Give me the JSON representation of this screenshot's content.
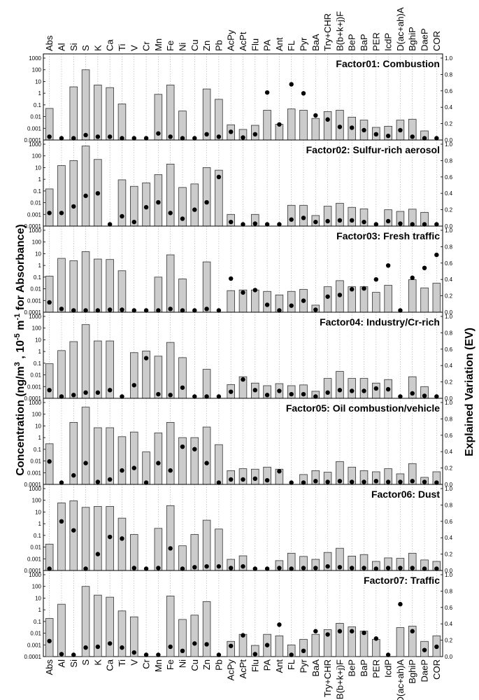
{
  "colors": {
    "bar_fill": "#cccccc",
    "bar_stroke": "#333333",
    "dot": "#000000",
    "grid": "#aaaaaa"
  },
  "ylabel_left": "Concentration (ng/m3 , 10-5 m-1 for Absorbance)",
  "ylabel_right": "Explained Variation (EV)",
  "chart_data": {
    "type": "bar",
    "scale_left": "log",
    "scale_right": "linear",
    "categories": [
      "Abs",
      "Al",
      "Si",
      "S",
      "K",
      "Ca",
      "Ti",
      "V",
      "Cr",
      "Mn",
      "Fe",
      "Ni",
      "Cu",
      "Zn",
      "Pb",
      "AcPy",
      "AcPt",
      "Flu",
      "PA",
      "Ant",
      "FL",
      "Pyr",
      "BaA",
      "Try+CHR",
      "B(b+k+j)F",
      "BeP",
      "BaP",
      "PER",
      "IcdP",
      "D(ac+ah)A",
      "BghiP",
      "DaeP",
      "COR"
    ],
    "y_ticks_left": [
      "1000",
      "100",
      "10",
      "1",
      "0.1",
      "0.01",
      "0.001",
      "0.0001"
    ],
    "y_ticks_right": [
      "1.0",
      "0.8",
      "0.6",
      "0.4",
      "0.2",
      "0.0"
    ],
    "ylim_left": [
      0.0001,
      1000
    ],
    "ylim_right": [
      0,
      1
    ],
    "factors": [
      {
        "title": "Factor01: Combustion",
        "bars": [
          0.05,
          null,
          3.5,
          100,
          5,
          3,
          0.12,
          null,
          null,
          0.8,
          5,
          0.03,
          null,
          2.3,
          0.3,
          0.002,
          0.0008,
          0.0018,
          0.035,
          0.0022,
          0.045,
          0.035,
          0.007,
          0.027,
          0.035,
          0.009,
          0.005,
          0.0012,
          0.0015,
          0.005,
          0.006,
          0.0006,
          null
        ],
        "ev": [
          0.04,
          0.0,
          0.02,
          0.06,
          0.04,
          0.04,
          0.02,
          0.0,
          0.0,
          0.08,
          0.04,
          0.02,
          0.0,
          0.07,
          0.04,
          0.1,
          0.03,
          0.07,
          0.58,
          0.19,
          0.68,
          0.57,
          0.3,
          0.25,
          0.16,
          0.15,
          0.12,
          0.07,
          0.05,
          0.12,
          0.04,
          0.02,
          0.0
        ]
      },
      {
        "title": "Factor02: Sulfur-rich aerosol",
        "bars": [
          0.15,
          15,
          40,
          700,
          50,
          null,
          0.9,
          0.25,
          0.5,
          2.5,
          20,
          0.2,
          0.4,
          10,
          6,
          0.001,
          null,
          0.001,
          null,
          null,
          0.006,
          0.006,
          0.0008,
          0.005,
          0.009,
          0.004,
          0.003,
          null,
          0.0025,
          0.0018,
          0.0028,
          0.0015,
          null
        ],
        "ev": [
          0.16,
          0.16,
          0.24,
          0.37,
          0.4,
          0.0,
          0.12,
          0.05,
          0.23,
          0.29,
          0.16,
          0.09,
          0.2,
          0.29,
          0.6,
          0.05,
          0.0,
          0.03,
          0.0,
          0.0,
          0.08,
          0.1,
          0.05,
          0.06,
          0.07,
          0.07,
          0.05,
          0.01,
          0.06,
          0.03,
          0.0,
          0.0,
          0.0
        ]
      },
      {
        "title": "Factor03: Fresh traffic",
        "bars": [
          0.12,
          4,
          2.5,
          15,
          3.5,
          3.2,
          0.35,
          null,
          null,
          0.1,
          8,
          0.07,
          null,
          2,
          null,
          0.007,
          0.008,
          0.008,
          0.006,
          0.003,
          0.006,
          0.009,
          0.0004,
          0.015,
          0.05,
          0.015,
          0.015,
          0.005,
          0.02,
          null,
          0.06,
          0.012,
          0.03
        ],
        "ev": [
          0.12,
          0.04,
          0.02,
          0.02,
          0.02,
          0.03,
          0.03,
          0.0,
          0.0,
          0.02,
          0.04,
          0.02,
          0.0,
          0.04,
          0.0,
          0.41,
          0.24,
          0.27,
          0.09,
          0.0,
          0.08,
          0.14,
          0.03,
          0.19,
          0.21,
          0.28,
          0.29,
          0.4,
          0.57,
          0.0,
          0.42,
          0.54,
          0.7
        ]
      },
      {
        "title": "Factor04: Industry/Cr-rich",
        "bars": [
          0.09,
          1.2,
          7,
          200,
          8,
          8,
          null,
          0.8,
          1.1,
          0.4,
          6,
          0.3,
          null,
          0.03,
          null,
          0.0015,
          0.007,
          0.002,
          0.0012,
          0.0018,
          0.0012,
          0.0014,
          0.0004,
          0.005,
          0.02,
          0.005,
          0.005,
          0.002,
          0.004,
          null,
          0.007,
          0.001,
          null
        ],
        "ev": [
          0.1,
          0.02,
          0.04,
          0.07,
          0.07,
          0.1,
          0.0,
          0.16,
          0.49,
          0.05,
          0.04,
          0.13,
          0.0,
          0.0,
          0.0,
          0.08,
          0.23,
          0.1,
          0.04,
          0.09,
          0.05,
          0.05,
          0.01,
          0.07,
          0.1,
          0.09,
          0.09,
          0.12,
          0.11,
          0.0,
          0.06,
          0.03,
          0.0
        ]
      },
      {
        "title": "Factor05: Oil combustion/vehicle",
        "bars": [
          0.3,
          null,
          20,
          400,
          7,
          7,
          1.2,
          3,
          0.06,
          2.5,
          20,
          1,
          1,
          8,
          0.25,
          0.0015,
          0.0022,
          0.002,
          0.003,
          0.002,
          null,
          0.0007,
          0.0015,
          0.0011,
          0.009,
          0.003,
          0.0015,
          0.0012,
          0.0022,
          0.0008,
          0.006,
          0.0004,
          0.0012
        ],
        "ev": [
          0.28,
          0.0,
          0.11,
          0.26,
          0.03,
          0.06,
          0.17,
          0.2,
          0.01,
          0.26,
          0.17,
          0.46,
          0.43,
          0.26,
          0.02,
          0.06,
          0.06,
          0.07,
          0.05,
          0.16,
          0.0,
          0.02,
          0.04,
          0.03,
          0.04,
          0.03,
          0.03,
          0.04,
          0.03,
          0.03,
          0.04,
          0.03,
          0.02
        ]
      },
      {
        "title": "Factor06: Dust",
        "bars": [
          0.018,
          60,
          90,
          25,
          30,
          30,
          3,
          0.12,
          null,
          0.4,
          35,
          0.013,
          0.12,
          2,
          0.35,
          0.0009,
          0.0018,
          null,
          null,
          0.0007,
          0.003,
          0.0016,
          0.0009,
          0.0035,
          0.008,
          0.0017,
          0.0023,
          0.0006,
          0.0012,
          0.0011,
          0.003,
          0.0008,
          0.0006
        ],
        "ev": [
          0.02,
          0.6,
          0.49,
          0.01,
          0.2,
          0.41,
          0.39,
          0.03,
          0.0,
          0.03,
          0.27,
          0.01,
          0.04,
          0.05,
          0.05,
          0.03,
          0.05,
          0.0,
          0.0,
          0.03,
          0.0,
          0.03,
          0.03,
          0.05,
          0.04,
          0.03,
          0.03,
          0.02,
          0.03,
          0.03,
          0.03,
          0.02,
          0.02
        ]
      },
      {
        "title": "Factor07: Traffic",
        "bars": [
          0.18,
          3,
          null,
          100,
          18,
          12,
          0.8,
          0.25,
          null,
          null,
          15,
          0.15,
          0.35,
          5,
          null,
          0.002,
          0.008,
          0.0009,
          0.008,
          0.006,
          0.001,
          0.003,
          0.008,
          0.02,
          0.07,
          0.035,
          0.015,
          0.003,
          null,
          0.03,
          0.04,
          0.002,
          0.006
        ],
        "ev": [
          0.19,
          0.03,
          0.0,
          0.11,
          0.12,
          0.16,
          0.11,
          0.05,
          0.0,
          0.0,
          0.12,
          0.07,
          0.16,
          0.15,
          0.0,
          0.13,
          0.26,
          0.03,
          0.14,
          0.39,
          0.02,
          0.07,
          0.31,
          0.27,
          0.31,
          0.31,
          0.29,
          0.22,
          0.0,
          0.64,
          0.31,
          0.08,
          0.12
        ]
      }
    ]
  }
}
